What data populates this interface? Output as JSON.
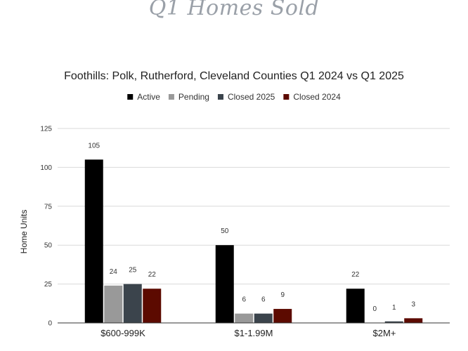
{
  "page_title": "Q1 Homes Sold",
  "chart_data": {
    "type": "bar",
    "title": "Foothills: Polk, Rutherford, Cleveland Counties Q1 2024 vs Q1 2025",
    "xlabel": "",
    "ylabel": "Home Units",
    "categories": [
      "$600-999K",
      "$1-1.99M",
      "$2M+"
    ],
    "series": [
      {
        "name": "Active",
        "color": "#000000",
        "values": [
          105,
          50,
          22
        ]
      },
      {
        "name": "Pending",
        "color": "#999999",
        "values": [
          24,
          6,
          0
        ]
      },
      {
        "name": "Closed 2025",
        "color": "#3b444c",
        "values": [
          25,
          6,
          1
        ]
      },
      {
        "name": "Closed 2024",
        "color": "#5c0a00",
        "values": [
          22,
          9,
          3
        ]
      }
    ],
    "ylim": [
      0,
      125
    ],
    "yticks": [
      0,
      25,
      50,
      75,
      100,
      125
    ],
    "grid": true,
    "legend_position": "top-center",
    "data_labels": true
  }
}
